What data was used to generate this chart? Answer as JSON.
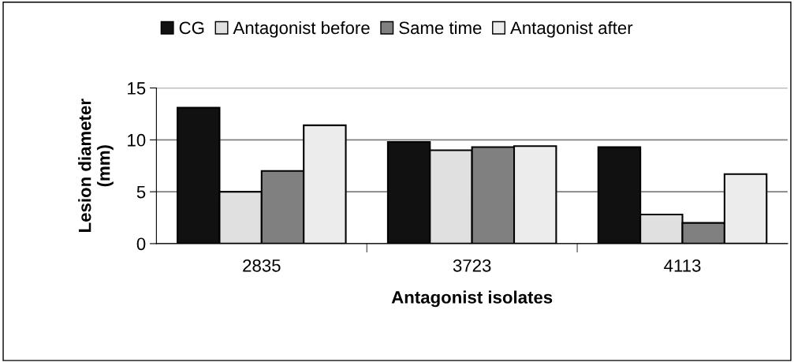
{
  "chart_data": {
    "type": "bar",
    "xlabel": "Antagonist isolates",
    "ylabel": "Lesion diameter\n(mm)",
    "categories": [
      "2835",
      "3723",
      "4113"
    ],
    "series": [
      {
        "name": "CG",
        "color": "#111111",
        "values": [
          13.1,
          9.8,
          9.3
        ]
      },
      {
        "name": "Antagonist before",
        "color": "#e0e0e0",
        "values": [
          5.0,
          9.0,
          2.8
        ]
      },
      {
        "name": "Same time",
        "color": "#808080",
        "values": [
          7.0,
          9.3,
          2.0
        ]
      },
      {
        "name": "Antagonist after",
        "color": "#ececec",
        "values": [
          11.4,
          9.4,
          6.7
        ]
      }
    ],
    "ylim": [
      0,
      15
    ],
    "yticks": [
      0,
      5,
      10,
      15
    ],
    "grid": "y",
    "legend": "top"
  }
}
